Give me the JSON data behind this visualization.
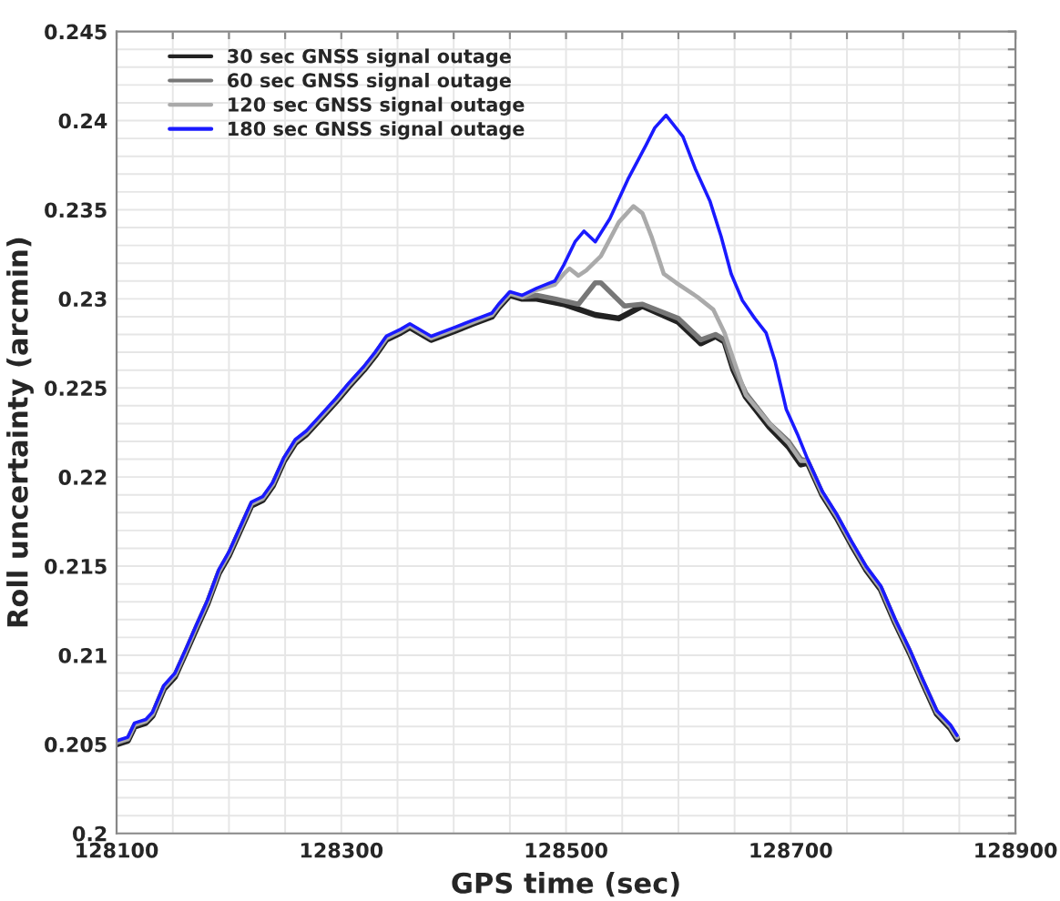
{
  "chart_data": {
    "type": "line",
    "xlabel": "GPS time (sec)",
    "ylabel": "Roll uncertainty (arcmin)",
    "xlim": [
      128100,
      128900
    ],
    "ylim": [
      0.2,
      0.245
    ],
    "xticks": [
      128100,
      {
        "value": 128150,
        "label": null
      },
      {
        "value": 128200,
        "label": null
      },
      {
        "value": 128250,
        "label": null
      },
      128300,
      {
        "value": 128350,
        "label": null
      },
      {
        "value": 128400,
        "label": null
      },
      {
        "value": 128450,
        "label": null
      },
      128500,
      {
        "value": 128550,
        "label": null
      },
      {
        "value": 128600,
        "label": null
      },
      {
        "value": 128650,
        "label": null
      },
      128700,
      {
        "value": 128750,
        "label": null
      },
      {
        "value": 128800,
        "label": null
      },
      {
        "value": 128850,
        "label": null
      },
      128900
    ],
    "yticks": [
      0.2,
      {
        "value": 0.201,
        "label": null
      },
      {
        "value": 0.202,
        "label": null
      },
      {
        "value": 0.203,
        "label": null
      },
      {
        "value": 0.204,
        "label": null
      },
      0.205,
      {
        "value": 0.206,
        "label": null
      },
      {
        "value": 0.207,
        "label": null
      },
      {
        "value": 0.208,
        "label": null
      },
      {
        "value": 0.209,
        "label": null
      },
      0.21,
      {
        "value": 0.211,
        "label": null
      },
      {
        "value": 0.212,
        "label": null
      },
      {
        "value": 0.213,
        "label": null
      },
      {
        "value": 0.214,
        "label": null
      },
      0.215,
      {
        "value": 0.216,
        "label": null
      },
      {
        "value": 0.217,
        "label": null
      },
      {
        "value": 0.218,
        "label": null
      },
      {
        "value": 0.219,
        "label": null
      },
      0.22,
      {
        "value": 0.221,
        "label": null
      },
      {
        "value": 0.222,
        "label": null
      },
      {
        "value": 0.223,
        "label": null
      },
      {
        "value": 0.224,
        "label": null
      },
      0.225,
      {
        "value": 0.226,
        "label": null
      },
      {
        "value": 0.227,
        "label": null
      },
      {
        "value": 0.228,
        "label": null
      },
      {
        "value": 0.229,
        "label": null
      },
      0.23,
      {
        "value": 0.231,
        "label": null
      },
      {
        "value": 0.232,
        "label": null
      },
      {
        "value": 0.233,
        "label": null
      },
      {
        "value": 0.234,
        "label": null
      },
      0.235,
      {
        "value": 0.236,
        "label": null
      },
      {
        "value": 0.237,
        "label": null
      },
      {
        "value": 0.238,
        "label": null
      },
      {
        "value": 0.239,
        "label": null
      },
      0.24,
      {
        "value": 0.241,
        "label": null
      },
      {
        "value": 0.242,
        "label": null
      },
      {
        "value": 0.243,
        "label": null
      },
      {
        "value": 0.244,
        "label": null
      },
      0.245
    ],
    "grid": true,
    "legend": "top left",
    "line_style": "solid",
    "marker": "none",
    "series": [
      {
        "name": "30 sec GNSS signal outage",
        "color": "#222222",
        "x": [
          128100,
          128110,
          128116,
          128126,
          128132,
          128142,
          128152,
          128162,
          128171,
          128181,
          128191,
          128200,
          128210,
          128220,
          128230,
          128239,
          128249,
          128259,
          128269,
          128282,
          128295,
          128307,
          128320,
          128330,
          128340,
          128353,
          128361,
          128380,
          128401,
          128417,
          128434,
          128440,
          128450,
          128461,
          128474,
          128498,
          128526,
          128547,
          128568,
          128600,
          128620,
          128633,
          128641,
          128649,
          128660,
          128681,
          128698,
          128709,
          128715,
          128728,
          128741,
          128754,
          128767,
          128780,
          128793,
          128806,
          128817,
          128830,
          128842,
          128848
        ],
        "values": [
          0.205,
          0.2052,
          0.206,
          0.2062,
          0.2066,
          0.2081,
          0.2088,
          0.2102,
          0.2115,
          0.2129,
          0.2146,
          0.2156,
          0.217,
          0.2184,
          0.2187,
          0.2195,
          0.2209,
          0.2219,
          0.2224,
          0.2233,
          0.2242,
          0.2251,
          0.226,
          0.2268,
          0.2277,
          0.2281,
          0.2284,
          0.2277,
          0.2282,
          0.2286,
          0.229,
          0.2295,
          0.2302,
          0.23,
          0.23,
          0.2297,
          0.2291,
          0.2289,
          0.2296,
          0.2287,
          0.2275,
          0.2279,
          0.2276,
          0.226,
          0.2245,
          0.2228,
          0.2217,
          0.2207,
          0.2208,
          0.219,
          0.2177,
          0.2162,
          0.2148,
          0.2137,
          0.2118,
          0.2101,
          0.2085,
          0.2067,
          0.2059,
          0.2053
        ]
      },
      {
        "name": "60 sec GNSS signal outage",
        "color": "#777777",
        "x": [
          128100,
          128110,
          128116,
          128126,
          128132,
          128142,
          128152,
          128162,
          128171,
          128181,
          128191,
          128200,
          128210,
          128220,
          128230,
          128239,
          128249,
          128259,
          128269,
          128282,
          128295,
          128307,
          128320,
          128330,
          128340,
          128353,
          128361,
          128380,
          128401,
          128417,
          128434,
          128440,
          128450,
          128461,
          128474,
          128490,
          128511,
          128526,
          128531,
          128552,
          128568,
          128600,
          128620,
          128633,
          128641,
          128649,
          128660,
          128681,
          128698,
          128709,
          128715,
          128728,
          128741,
          128754,
          128767,
          128780,
          128793,
          128806,
          128817,
          128830,
          128842,
          128848
        ],
        "values": [
          0.2051,
          0.2053,
          0.2061,
          0.2063,
          0.2067,
          0.2082,
          0.2089,
          0.2103,
          0.2116,
          0.213,
          0.2147,
          0.2157,
          0.2171,
          0.2185,
          0.2188,
          0.2196,
          0.221,
          0.222,
          0.2225,
          0.2234,
          0.2243,
          0.2252,
          0.2261,
          0.2269,
          0.2278,
          0.2282,
          0.2285,
          0.2278,
          0.2283,
          0.2287,
          0.2291,
          0.2296,
          0.2303,
          0.2301,
          0.2302,
          0.23,
          0.2297,
          0.2309,
          0.2309,
          0.2296,
          0.2297,
          0.2289,
          0.2277,
          0.228,
          0.2277,
          0.2262,
          0.2247,
          0.223,
          0.222,
          0.221,
          0.2209,
          0.2191,
          0.2178,
          0.2163,
          0.2149,
          0.2138,
          0.2119,
          0.2102,
          0.2086,
          0.2068,
          0.206,
          0.2054
        ]
      },
      {
        "name": "120 sec GNSS signal outage",
        "color": "#aaaaaa",
        "x": [
          128100,
          128110,
          128116,
          128126,
          128132,
          128142,
          128152,
          128162,
          128171,
          128181,
          128191,
          128200,
          128210,
          128220,
          128230,
          128239,
          128249,
          128259,
          128269,
          128282,
          128295,
          128307,
          128320,
          128330,
          128340,
          128353,
          128361,
          128380,
          128401,
          128417,
          128434,
          128440,
          128450,
          128461,
          128474,
          128490,
          128498,
          128503,
          128511,
          128518,
          128531,
          128547,
          128560,
          128568,
          128576,
          128587,
          128598,
          128617,
          128631,
          128641,
          128649,
          128660,
          128681,
          128698,
          128709,
          128715,
          128728,
          128741,
          128754,
          128767,
          128780,
          128793,
          128806,
          128817,
          128830,
          128842,
          128848
        ],
        "values": [
          0.2051,
          0.2053,
          0.2061,
          0.2063,
          0.2067,
          0.2082,
          0.2089,
          0.2103,
          0.2116,
          0.213,
          0.2147,
          0.2157,
          0.2171,
          0.2185,
          0.2188,
          0.2196,
          0.221,
          0.222,
          0.2225,
          0.2234,
          0.2243,
          0.2252,
          0.2261,
          0.2269,
          0.2278,
          0.2282,
          0.2285,
          0.2278,
          0.2283,
          0.2287,
          0.2291,
          0.2296,
          0.2303,
          0.2301,
          0.2305,
          0.2308,
          0.2314,
          0.2317,
          0.2313,
          0.2316,
          0.2324,
          0.2343,
          0.2352,
          0.2348,
          0.2335,
          0.2314,
          0.2309,
          0.2301,
          0.2294,
          0.2281,
          0.2266,
          0.2246,
          0.223,
          0.2219,
          0.2209,
          0.2209,
          0.2191,
          0.2178,
          0.2163,
          0.2149,
          0.2138,
          0.2119,
          0.2102,
          0.2086,
          0.2068,
          0.206,
          0.2054
        ]
      },
      {
        "name": "180 sec GNSS signal outage",
        "color": "#1a1aff",
        "x": [
          128100,
          128110,
          128116,
          128126,
          128132,
          128142,
          128152,
          128162,
          128171,
          128181,
          128191,
          128200,
          128210,
          128220,
          128230,
          128239,
          128249,
          128259,
          128269,
          128282,
          128295,
          128307,
          128320,
          128330,
          128340,
          128353,
          128361,
          128380,
          128401,
          128417,
          128434,
          128440,
          128450,
          128461,
          128474,
          128482,
          128490,
          128498,
          128508,
          128516,
          128526,
          128539,
          128555,
          128571,
          128579,
          128589,
          128604,
          128615,
          128628,
          128638,
          128647,
          128657,
          128668,
          128678,
          128686,
          128696,
          128706,
          128715,
          128728,
          128741,
          128754,
          128767,
          128780,
          128793,
          128806,
          128817,
          128830,
          128842,
          128848
        ],
        "values": [
          0.2052,
          0.2054,
          0.2062,
          0.2064,
          0.2068,
          0.2083,
          0.209,
          0.2104,
          0.2117,
          0.2131,
          0.2148,
          0.2158,
          0.2172,
          0.2186,
          0.2189,
          0.2197,
          0.2211,
          0.2221,
          0.2226,
          0.2235,
          0.2244,
          0.2253,
          0.2262,
          0.227,
          0.2279,
          0.2283,
          0.2286,
          0.2279,
          0.2284,
          0.2288,
          0.2292,
          0.2297,
          0.2304,
          0.2302,
          0.2306,
          0.2308,
          0.231,
          0.2319,
          0.2332,
          0.2338,
          0.2332,
          0.2345,
          0.2367,
          0.2386,
          0.2396,
          0.2403,
          0.2391,
          0.2373,
          0.2355,
          0.2335,
          0.2314,
          0.2299,
          0.2289,
          0.2281,
          0.2265,
          0.2238,
          0.2224,
          0.221,
          0.2192,
          0.2179,
          0.2164,
          0.215,
          0.2139,
          0.212,
          0.2103,
          0.2087,
          0.2069,
          0.2061,
          0.2055
        ]
      }
    ]
  }
}
